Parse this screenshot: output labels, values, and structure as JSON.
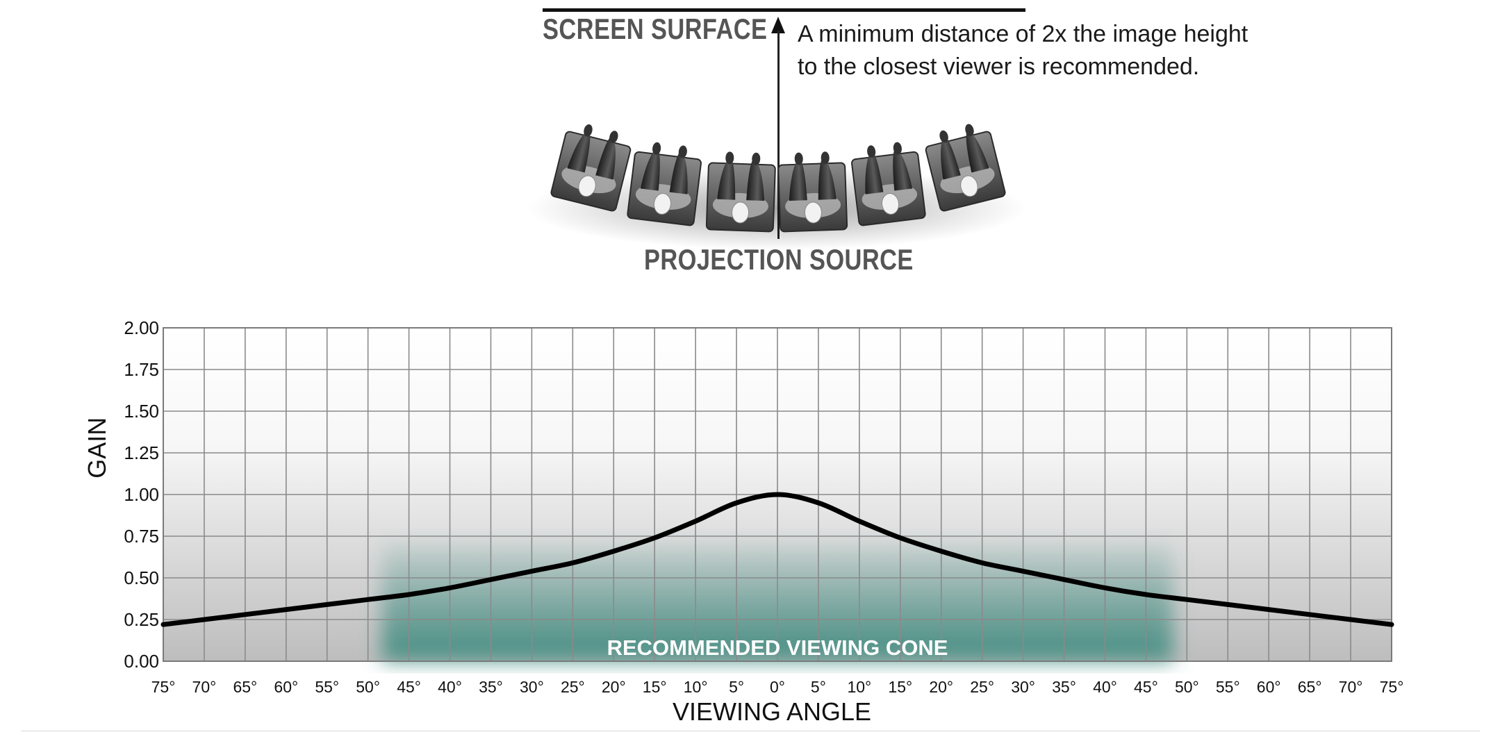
{
  "diagram": {
    "screen_label": "SCREEN SURFACE",
    "projection_label": "PROJECTION SOURCE",
    "note_lines": [
      "A minimum distance of 2x the image height",
      "to the closest viewer is recommended."
    ],
    "seat_rows": 6
  },
  "chart_data": {
    "type": "line",
    "ylabel": "GAIN",
    "xlabel": "VIEWING ANGLE",
    "yticks": [
      "2.00",
      "1.75",
      "1.50",
      "1.25",
      "1.00",
      "0.75",
      "0.50",
      "0.25",
      "0.00"
    ],
    "xticks": [
      "75°",
      "70°",
      "65°",
      "60°",
      "55°",
      "50°",
      "45°",
      "40°",
      "35°",
      "30°",
      "25°",
      "20°",
      "15°",
      "10°",
      "5°",
      "0°",
      "5°",
      "10°",
      "15°",
      "20°",
      "25°",
      "30°",
      "35°",
      "40°",
      "45°",
      "50°",
      "55°",
      "60°",
      "65°",
      "70°",
      "75°"
    ],
    "ylim": [
      0,
      2
    ],
    "xlim": [
      -75,
      75
    ],
    "grid": true,
    "x": [
      -75,
      -70,
      -65,
      -60,
      -55,
      -50,
      -45,
      -40,
      -35,
      -30,
      -25,
      -20,
      -15,
      -10,
      -5,
      0,
      5,
      10,
      15,
      20,
      25,
      30,
      35,
      40,
      45,
      50,
      55,
      60,
      65,
      70,
      75
    ],
    "series": [
      {
        "values": [
          0.22,
          0.25,
          0.28,
          0.31,
          0.34,
          0.37,
          0.4,
          0.44,
          0.49,
          0.54,
          0.59,
          0.66,
          0.74,
          0.84,
          0.95,
          1.0,
          0.95,
          0.84,
          0.74,
          0.66,
          0.59,
          0.54,
          0.49,
          0.44,
          0.4,
          0.37,
          0.34,
          0.31,
          0.28,
          0.25,
          0.22
        ],
        "color": "#000000"
      }
    ],
    "recommended_cone": {
      "label": "RECOMMENDED VIEWING CONE",
      "from": -50,
      "to": 50,
      "max_gain": 0.75,
      "color": "#3f8c80"
    }
  }
}
